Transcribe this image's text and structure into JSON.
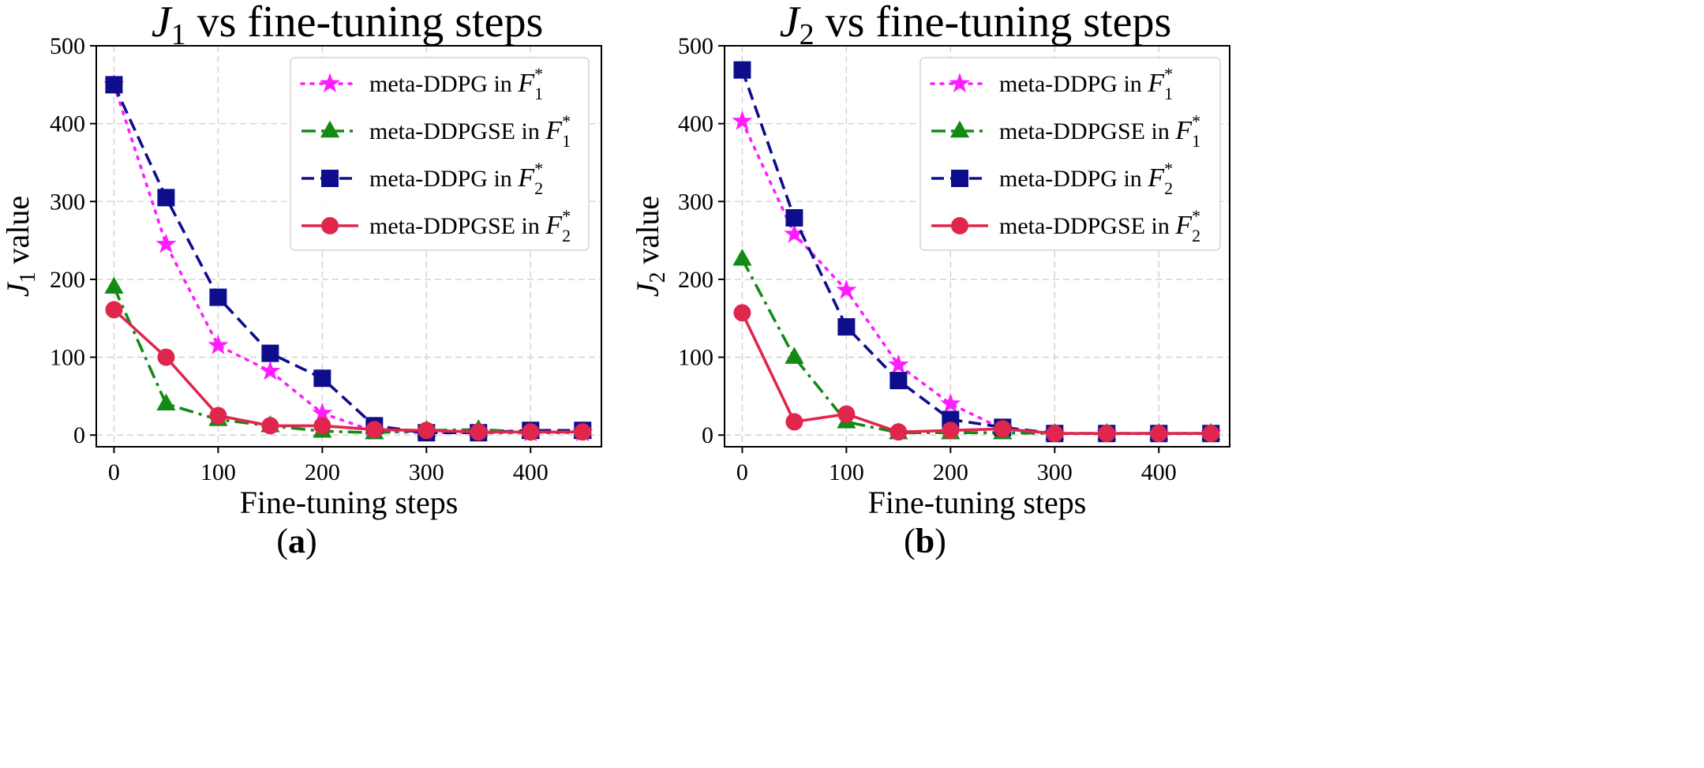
{
  "chart_data": [
    {
      "type": "line",
      "panel_label": "(a)",
      "title_prefix": "J",
      "title_sub": "1",
      "title_suffix": " vs fine-tuning steps",
      "xlabel": "Fine-tuning steps",
      "ylabel_prefix": "J",
      "ylabel_sub": "1",
      "ylabel_suffix": " value",
      "xlim": [
        -17,
        468
      ],
      "ylim": [
        -15,
        500
      ],
      "xticks": [
        0,
        100,
        200,
        300,
        400
      ],
      "yticks": [
        0,
        100,
        200,
        300,
        400,
        500
      ],
      "grid": true,
      "legend_position": "top-right",
      "x": [
        0,
        50,
        100,
        150,
        200,
        250,
        300,
        350,
        400,
        450
      ],
      "series": [
        {
          "name": "meta-DDPG in",
          "name_math": "F",
          "name_sub": "1",
          "name_sup": "*",
          "color": "#ff1cff",
          "dash": "dotted",
          "marker": "star",
          "values": [
            450,
            245,
            115,
            82,
            28,
            5,
            3,
            3,
            3,
            3
          ]
        },
        {
          "name": "meta-DDPGSE in",
          "name_math": "F",
          "name_sub": "1",
          "name_sup": "*",
          "color": "#138a13",
          "dash": "dashdot",
          "marker": "triangle",
          "values": [
            190,
            40,
            20,
            12,
            5,
            3,
            6,
            7,
            4,
            4
          ]
        },
        {
          "name": "meta-DDPG in",
          "name_math": "F",
          "name_sub": "2",
          "name_sup": "*",
          "color": "#0e0e8c",
          "dash": "dashed",
          "marker": "square",
          "values": [
            450,
            305,
            177,
            105,
            73,
            12,
            3,
            3,
            6,
            6
          ]
        },
        {
          "name": "meta-DDPGSE in",
          "name_math": "F",
          "name_sub": "2",
          "name_sup": "*",
          "color": "#e0264c",
          "dash": "solid",
          "marker": "circle",
          "values": [
            161,
            100,
            25,
            12,
            12,
            7,
            6,
            4,
            4,
            4
          ]
        }
      ]
    },
    {
      "type": "line",
      "panel_label": "(b)",
      "title_prefix": "J",
      "title_sub": "2",
      "title_suffix": " vs fine-tuning steps",
      "xlabel": "Fine-tuning steps",
      "ylabel_prefix": "J",
      "ylabel_sub": "2",
      "ylabel_suffix": " value",
      "xlim": [
        -17,
        468
      ],
      "ylim": [
        -15,
        500
      ],
      "xticks": [
        0,
        100,
        200,
        300,
        400
      ],
      "yticks": [
        0,
        100,
        200,
        300,
        400,
        500
      ],
      "grid": true,
      "legend_position": "top-right",
      "x": [
        0,
        50,
        100,
        150,
        200,
        250,
        300,
        350,
        400,
        450
      ],
      "series": [
        {
          "name": "meta-DDPG in",
          "name_math": "F",
          "name_sub": "1",
          "name_sup": "*",
          "color": "#ff1cff",
          "dash": "dotted",
          "marker": "star",
          "values": [
            403,
            258,
            186,
            90,
            40,
            8,
            2,
            2,
            2,
            2
          ]
        },
        {
          "name": "meta-DDPGSE in",
          "name_math": "F",
          "name_sub": "1",
          "name_sup": "*",
          "color": "#138a13",
          "dash": "dashdot",
          "marker": "triangle",
          "values": [
            226,
            100,
            17,
            3,
            3,
            3,
            2,
            2,
            2,
            2
          ]
        },
        {
          "name": "meta-DDPG in",
          "name_math": "F",
          "name_sub": "2",
          "name_sup": "*",
          "color": "#0e0e8c",
          "dash": "dashed",
          "marker": "square",
          "values": [
            469,
            279,
            139,
            70,
            20,
            10,
            2,
            2,
            2,
            2
          ]
        },
        {
          "name": "meta-DDPGSE in",
          "name_math": "F",
          "name_sub": "2",
          "name_sup": "*",
          "color": "#e0264c",
          "dash": "solid",
          "marker": "circle",
          "values": [
            157,
            17,
            27,
            4,
            6,
            8,
            2,
            2,
            2,
            2
          ]
        }
      ]
    }
  ]
}
